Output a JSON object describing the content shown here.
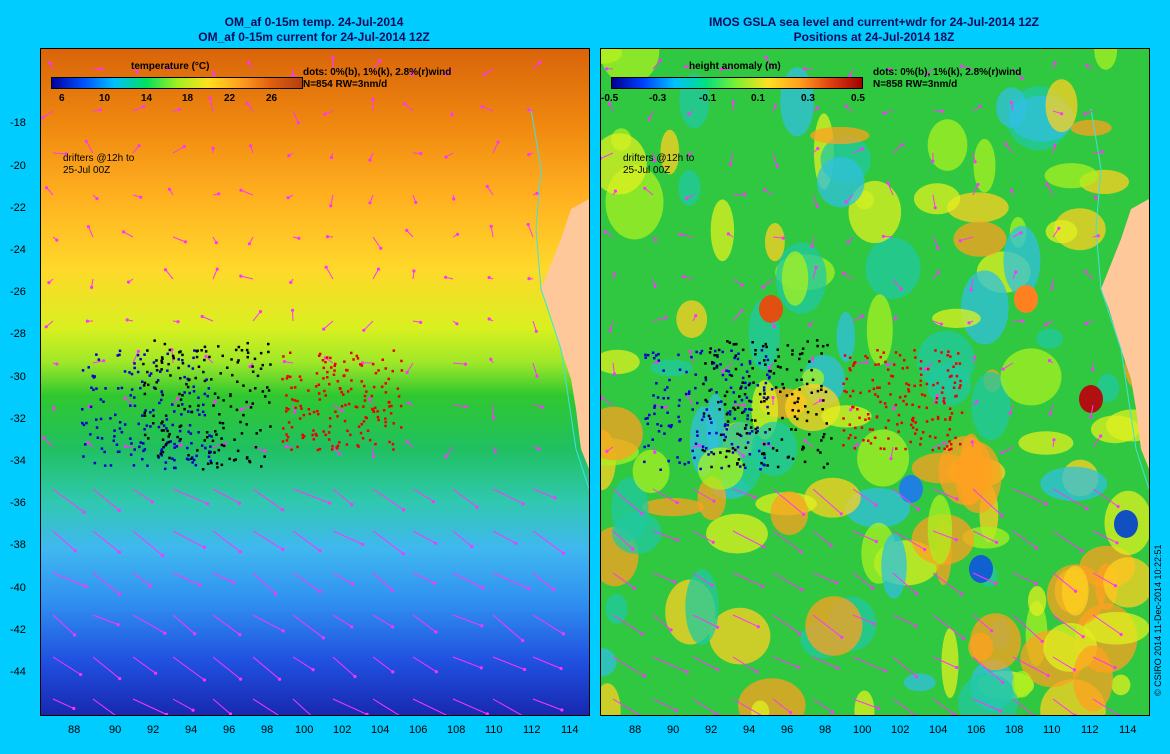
{
  "left": {
    "title_line1": "OM_af 0-15m temp. 24-Jul-2014",
    "title_line2": "OM_af 0-15m current for 24-Jul-2014 12Z",
    "colorbar_title": "temperature (°C)",
    "colorbar_ticks": [
      "6",
      "10",
      "14",
      "18",
      "22",
      "26"
    ],
    "dots_note": "dots: 0%(b), 1%(k), 2.8%(r)wind",
    "stats_note": "N=854 RW=3nm/d",
    "drifters_note_1": "drifters @12h to",
    "drifters_note_2": "25-Jul 00Z"
  },
  "right": {
    "title_line1": "IMOS GSLA sea level and current+wdr for 24-Jul-2014 12Z",
    "title_line2": "Positions at 24-Jul-2014 18Z",
    "colorbar_title": "height anomaly (m)",
    "colorbar_ticks": [
      "-0.5",
      "-0.3",
      "-0.1",
      "0.1",
      "0.3",
      "0.5"
    ],
    "dots_note": "dots: 0%(b), 1%(k), 2.8%(r)wind",
    "stats_note": "N=858 RW=3nm/d",
    "drifters_note_1": "drifters @12h to",
    "drifters_note_2": "25-Jul 00Z"
  },
  "lat_ticks": [
    "-18",
    "-20",
    "-22",
    "-24",
    "-26",
    "-28",
    "-30",
    "-32",
    "-34",
    "-36",
    "-38",
    "-40",
    "-42",
    "-44"
  ],
  "lon_ticks": [
    "88",
    "90",
    "92",
    "94",
    "96",
    "98",
    "100",
    "102",
    "104",
    "106",
    "108",
    "110",
    "112",
    "114"
  ],
  "credit": "© CSIRO 2014   11-Dec-2014 10:22:51",
  "colors": {
    "background": "#00ccff",
    "land": "#ffc89a",
    "arrows": "#ff33ff",
    "blue_dots": "#0000cc",
    "black_dots": "#000000",
    "red_dots": "#ee0000"
  }
}
